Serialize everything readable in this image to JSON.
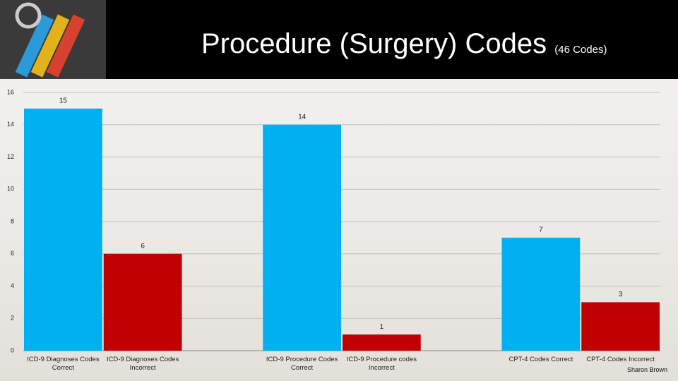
{
  "chart_data": {
    "type": "bar",
    "title": "Procedure (Surgery) Codes",
    "subtitle": "(46 Codes)",
    "categories": [
      "ICD-9 Diagnoses Codes Correct",
      "ICD-9 Diagnoses Codes Incorrect",
      null,
      "ICD-9 Procedure Codes Correct",
      "ICD-9 Procedure codes Incorrect",
      null,
      "CPT-4 Codes Correct",
      "CPT-4 Codes Incorrect"
    ],
    "values": [
      15,
      6,
      null,
      14,
      1,
      null,
      7,
      3
    ],
    "colors": [
      "#00b0f0",
      "#c00000",
      null,
      "#00b0f0",
      "#c00000",
      null,
      "#00b0f0",
      "#c00000"
    ],
    "ylim": [
      0,
      16
    ],
    "yticks": [
      0,
      2,
      4,
      6,
      8,
      10,
      12,
      14,
      16
    ],
    "grid": true
  },
  "footer": "Sharon Brown"
}
